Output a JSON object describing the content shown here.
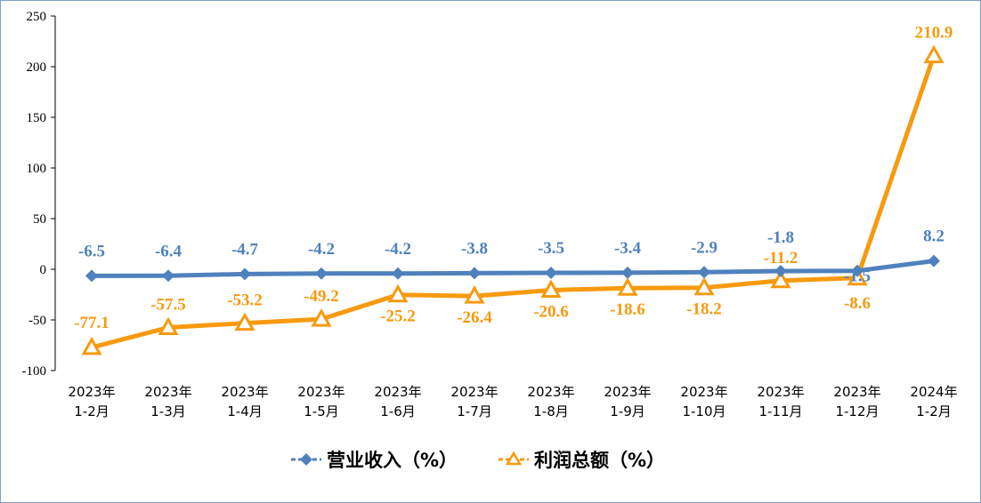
{
  "chart_data": {
    "type": "line",
    "title": "",
    "xlabel": "",
    "ylabel": "",
    "ylim": [
      -100,
      250
    ],
    "yticks": [
      -100,
      -50,
      0,
      50,
      100,
      150,
      200,
      250
    ],
    "grid": false,
    "legend_position": "bottom",
    "categories": [
      [
        "2023年",
        "1-2月"
      ],
      [
        "2023年",
        "1-3月"
      ],
      [
        "2023年",
        "1-4月"
      ],
      [
        "2023年",
        "1-5月"
      ],
      [
        "2023年",
        "1-6月"
      ],
      [
        "2023年",
        "1-7月"
      ],
      [
        "2023年",
        "1-8月"
      ],
      [
        "2023年",
        "1-9月"
      ],
      [
        "2023年",
        "1-10月"
      ],
      [
        "2023年",
        "1-11月"
      ],
      [
        "2023年",
        "1-12月"
      ],
      [
        "2024年",
        "1-2月"
      ]
    ],
    "series": [
      {
        "name": "营业收入（%）",
        "color": "#4f81bd",
        "marker": "diamond",
        "values": [
          -6.5,
          -6.4,
          -4.7,
          -4.2,
          -4.2,
          -3.8,
          -3.5,
          -3.4,
          -2.9,
          -1.8,
          -1.5,
          8.2
        ]
      },
      {
        "name": "利润总额（%）",
        "color": "#f79a0e",
        "marker": "triangle",
        "values": [
          -77.1,
          -57.5,
          -53.2,
          -49.2,
          -25.2,
          -26.4,
          -20.6,
          -18.6,
          -18.2,
          -11.2,
          -8.6,
          210.9
        ]
      }
    ]
  }
}
